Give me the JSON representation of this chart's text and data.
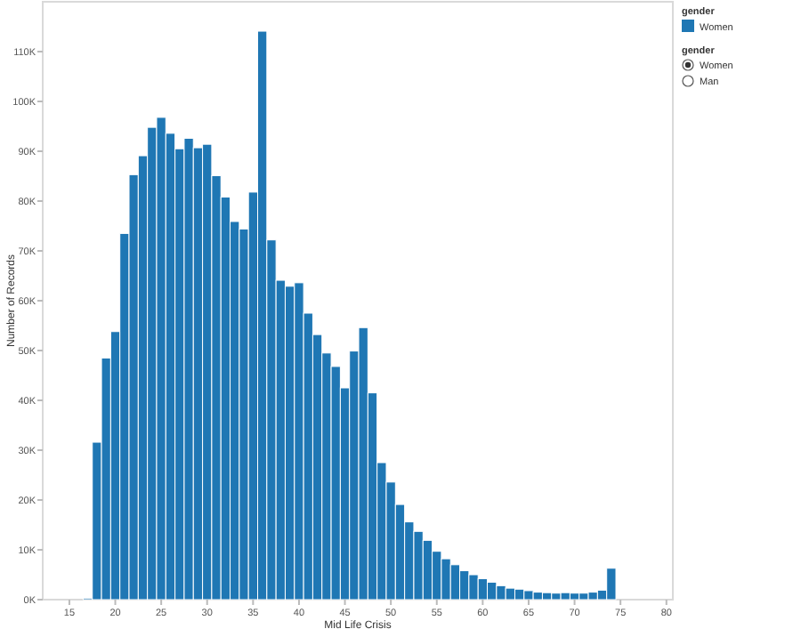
{
  "chart_data": {
    "type": "histogram",
    "xlabel": "Mid Life Crisis",
    "ylabel": "Number of Records",
    "legend_title": "gender",
    "legend": "right",
    "series": [
      {
        "name": "Women",
        "color": "#1f77b4",
        "values": [
          300,
          31600,
          48500,
          53800,
          73500,
          85300,
          89100,
          94800,
          96800,
          93600,
          90500,
          92600,
          90700,
          91400,
          85100,
          80800,
          75900,
          74400,
          81800,
          114100,
          72200,
          64100,
          62900,
          63600,
          57500,
          53200,
          49500,
          46800,
          42500,
          49900,
          54600,
          41500,
          27500,
          23600,
          19100,
          15600,
          13700,
          11900,
          9700,
          8200,
          7000,
          5800,
          5000,
          4200,
          3500,
          2800,
          2300,
          2100,
          1800,
          1500,
          1400,
          1300,
          1400,
          1300,
          1300,
          1500,
          1900,
          6300
        ]
      }
    ],
    "bins": [
      16.5,
      17.5,
      18.5,
      19.5,
      20.5,
      21.5,
      22.5,
      23.5,
      24.5,
      25.5,
      26.5,
      27.5,
      28.5,
      29.5,
      30.5,
      31.5,
      32.5,
      33.5,
      34.5,
      35.5,
      36.5,
      37.5,
      38.5,
      39.5,
      40.5,
      41.5,
      42.5,
      43.5,
      44.5,
      45.5,
      46.5,
      47.5,
      48.5,
      49.5,
      50.5,
      51.5,
      52.5,
      53.5,
      54.5,
      55.5,
      56.5,
      57.5,
      58.5,
      59.5,
      60.5,
      61.5,
      62.5,
      63.5,
      64.5,
      65.5,
      66.5,
      67.5,
      68.5,
      69.5,
      70.5,
      71.5,
      72.5,
      73.5,
      74.5
    ],
    "xlim": [
      12.1,
      80.7
    ],
    "xticks": [
      15,
      20,
      25,
      30,
      35,
      40,
      45,
      50,
      55,
      60,
      65,
      70,
      75,
      80
    ],
    "ylim": [
      0,
      120000
    ],
    "yticks": [
      {
        "value": 0,
        "label": "0K"
      },
      {
        "value": 10000,
        "label": "10K"
      },
      {
        "value": 20000,
        "label": "20K"
      },
      {
        "value": 30000,
        "label": "30K"
      },
      {
        "value": 40000,
        "label": "40K"
      },
      {
        "value": 50000,
        "label": "50K"
      },
      {
        "value": 60000,
        "label": "60K"
      },
      {
        "value": 70000,
        "label": "70K"
      },
      {
        "value": 80000,
        "label": "80K"
      },
      {
        "value": 90000,
        "label": "90K"
      },
      {
        "value": 100000,
        "label": "100K"
      },
      {
        "value": 110000,
        "label": "110K"
      }
    ],
    "grid": false,
    "annotations": [
      "gender",
      "Women",
      "Man"
    ]
  }
}
